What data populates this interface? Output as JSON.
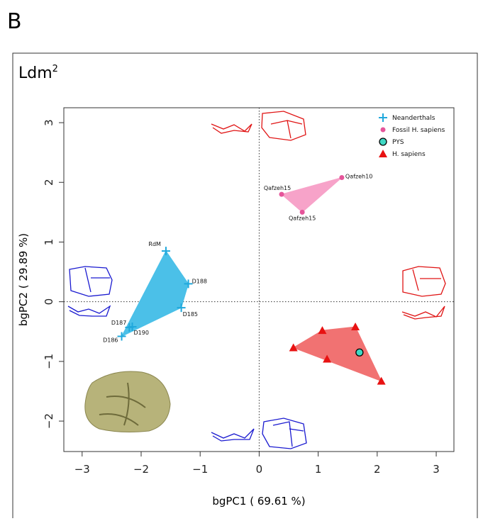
{
  "chart_data": {
    "type": "scatter",
    "panel_label": "B",
    "title": "Ldm",
    "title_superscript": "2",
    "x_label": "bgPC1 ( 69.61 %)",
    "y_label": "bgPC2 ( 29.89 %)",
    "xlim": [
      -3.31,
      3.3
    ],
    "ylim": [
      -2.51,
      3.25
    ],
    "xticks": [
      {
        "value": -3,
        "label": "−3"
      },
      {
        "value": -2,
        "label": "−2"
      },
      {
        "value": -1,
        "label": "−1"
      },
      0,
      1,
      2,
      3
    ],
    "yticks": [
      {
        "value": -2,
        "label": "−2"
      },
      {
        "value": -1,
        "label": "−1"
      },
      0,
      1,
      2,
      3
    ],
    "reference_x": 0,
    "reference_y": 0,
    "legend": "upper right",
    "series": [
      {
        "name": "Neanderthals",
        "color": "#1fa8dc",
        "hull_color": "#4bc0e8",
        "marker": "plus",
        "x": [
          -1.58,
          -1.2,
          -1.32,
          -2.15,
          -2.2,
          -2.33
        ],
        "values": [
          0.85,
          0.3,
          -0.1,
          -0.42,
          -0.43,
          -0.58
        ],
        "labels": [
          "RdM",
          "D188",
          "D185",
          "D190",
          "D187",
          "D186"
        ]
      },
      {
        "name": "Fossil H. sapiens",
        "color": "#e5559a",
        "hull_color": "#f7a3c9",
        "marker": "circle",
        "x": [
          0.38,
          1.4,
          0.73
        ],
        "values": [
          1.8,
          2.08,
          1.5
        ],
        "labels": [
          "Qafzeh15",
          "Qafzeh10",
          "Qafzeh15"
        ]
      },
      {
        "name": "PYS",
        "color": "#3fd8c4",
        "marker": "circle-outline",
        "x": [
          1.7
        ],
        "values": [
          -0.85
        ]
      },
      {
        "name": "H. sapiens",
        "color": "#e81212",
        "hull_color": "#f17272",
        "marker": "triangle",
        "x": [
          0.58,
          1.07,
          1.63,
          1.15,
          2.07
        ],
        "values": [
          -0.77,
          -0.48,
          -0.42,
          -0.96,
          -1.33
        ]
      }
    ]
  }
}
